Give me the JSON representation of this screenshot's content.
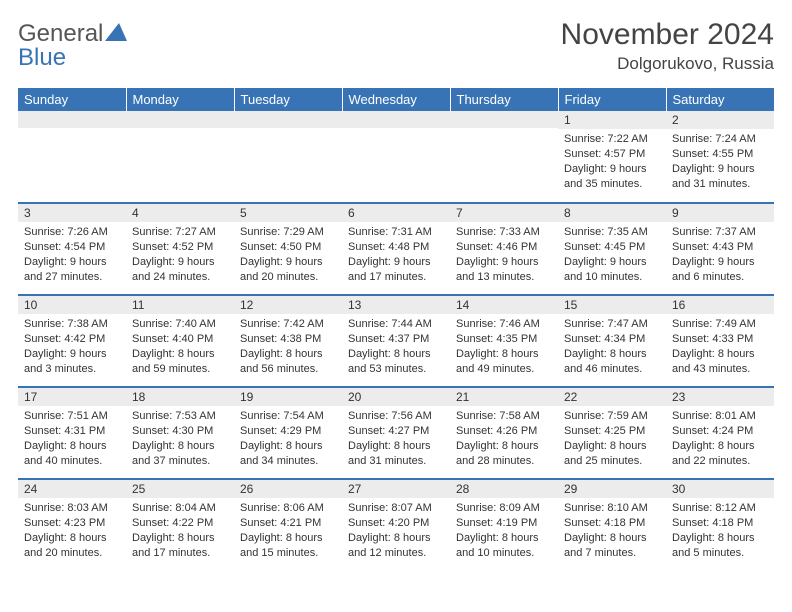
{
  "logo": {
    "text_gray": "General",
    "text_blue": "Blue"
  },
  "title": "November 2024",
  "location": "Dolgorukovo, Russia",
  "colors": {
    "header_bg": "#3874b5",
    "daynum_bg": "#ececec",
    "page_bg": "#ffffff",
    "text": "#333333"
  },
  "daynames": [
    "Sunday",
    "Monday",
    "Tuesday",
    "Wednesday",
    "Thursday",
    "Friday",
    "Saturday"
  ],
  "weeks": [
    [
      {
        "n": "",
        "sr": "",
        "ss": "",
        "dl": ""
      },
      {
        "n": "",
        "sr": "",
        "ss": "",
        "dl": ""
      },
      {
        "n": "",
        "sr": "",
        "ss": "",
        "dl": ""
      },
      {
        "n": "",
        "sr": "",
        "ss": "",
        "dl": ""
      },
      {
        "n": "",
        "sr": "",
        "ss": "",
        "dl": ""
      },
      {
        "n": "1",
        "sr": "7:22 AM",
        "ss": "4:57 PM",
        "dl": "9 hours and 35 minutes."
      },
      {
        "n": "2",
        "sr": "7:24 AM",
        "ss": "4:55 PM",
        "dl": "9 hours and 31 minutes."
      }
    ],
    [
      {
        "n": "3",
        "sr": "7:26 AM",
        "ss": "4:54 PM",
        "dl": "9 hours and 27 minutes."
      },
      {
        "n": "4",
        "sr": "7:27 AM",
        "ss": "4:52 PM",
        "dl": "9 hours and 24 minutes."
      },
      {
        "n": "5",
        "sr": "7:29 AM",
        "ss": "4:50 PM",
        "dl": "9 hours and 20 minutes."
      },
      {
        "n": "6",
        "sr": "7:31 AM",
        "ss": "4:48 PM",
        "dl": "9 hours and 17 minutes."
      },
      {
        "n": "7",
        "sr": "7:33 AM",
        "ss": "4:46 PM",
        "dl": "9 hours and 13 minutes."
      },
      {
        "n": "8",
        "sr": "7:35 AM",
        "ss": "4:45 PM",
        "dl": "9 hours and 10 minutes."
      },
      {
        "n": "9",
        "sr": "7:37 AM",
        "ss": "4:43 PM",
        "dl": "9 hours and 6 minutes."
      }
    ],
    [
      {
        "n": "10",
        "sr": "7:38 AM",
        "ss": "4:42 PM",
        "dl": "9 hours and 3 minutes."
      },
      {
        "n": "11",
        "sr": "7:40 AM",
        "ss": "4:40 PM",
        "dl": "8 hours and 59 minutes."
      },
      {
        "n": "12",
        "sr": "7:42 AM",
        "ss": "4:38 PM",
        "dl": "8 hours and 56 minutes."
      },
      {
        "n": "13",
        "sr": "7:44 AM",
        "ss": "4:37 PM",
        "dl": "8 hours and 53 minutes."
      },
      {
        "n": "14",
        "sr": "7:46 AM",
        "ss": "4:35 PM",
        "dl": "8 hours and 49 minutes."
      },
      {
        "n": "15",
        "sr": "7:47 AM",
        "ss": "4:34 PM",
        "dl": "8 hours and 46 minutes."
      },
      {
        "n": "16",
        "sr": "7:49 AM",
        "ss": "4:33 PM",
        "dl": "8 hours and 43 minutes."
      }
    ],
    [
      {
        "n": "17",
        "sr": "7:51 AM",
        "ss": "4:31 PM",
        "dl": "8 hours and 40 minutes."
      },
      {
        "n": "18",
        "sr": "7:53 AM",
        "ss": "4:30 PM",
        "dl": "8 hours and 37 minutes."
      },
      {
        "n": "19",
        "sr": "7:54 AM",
        "ss": "4:29 PM",
        "dl": "8 hours and 34 minutes."
      },
      {
        "n": "20",
        "sr": "7:56 AM",
        "ss": "4:27 PM",
        "dl": "8 hours and 31 minutes."
      },
      {
        "n": "21",
        "sr": "7:58 AM",
        "ss": "4:26 PM",
        "dl": "8 hours and 28 minutes."
      },
      {
        "n": "22",
        "sr": "7:59 AM",
        "ss": "4:25 PM",
        "dl": "8 hours and 25 minutes."
      },
      {
        "n": "23",
        "sr": "8:01 AM",
        "ss": "4:24 PM",
        "dl": "8 hours and 22 minutes."
      }
    ],
    [
      {
        "n": "24",
        "sr": "8:03 AM",
        "ss": "4:23 PM",
        "dl": "8 hours and 20 minutes."
      },
      {
        "n": "25",
        "sr": "8:04 AM",
        "ss": "4:22 PM",
        "dl": "8 hours and 17 minutes."
      },
      {
        "n": "26",
        "sr": "8:06 AM",
        "ss": "4:21 PM",
        "dl": "8 hours and 15 minutes."
      },
      {
        "n": "27",
        "sr": "8:07 AM",
        "ss": "4:20 PM",
        "dl": "8 hours and 12 minutes."
      },
      {
        "n": "28",
        "sr": "8:09 AM",
        "ss": "4:19 PM",
        "dl": "8 hours and 10 minutes."
      },
      {
        "n": "29",
        "sr": "8:10 AM",
        "ss": "4:18 PM",
        "dl": "8 hours and 7 minutes."
      },
      {
        "n": "30",
        "sr": "8:12 AM",
        "ss": "4:18 PM",
        "dl": "8 hours and 5 minutes."
      }
    ]
  ],
  "labels": {
    "sunrise": "Sunrise:",
    "sunset": "Sunset:",
    "daylight": "Daylight:"
  }
}
